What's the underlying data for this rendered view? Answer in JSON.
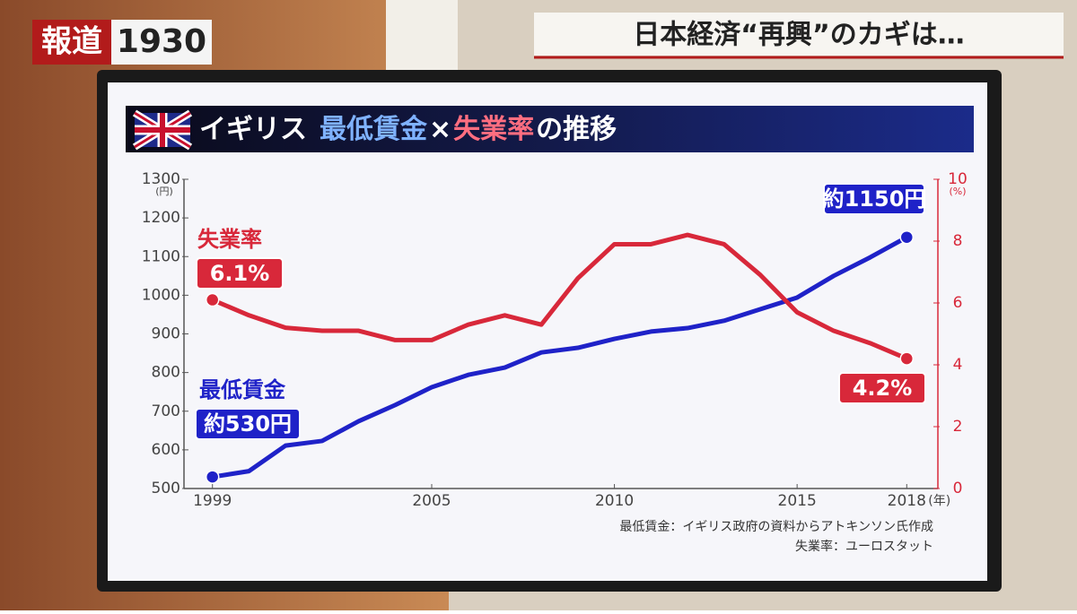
{
  "broadcast": {
    "logo": "報道",
    "number": "1930"
  },
  "headline": "日本経済“再興”のカギは…",
  "chart_data": {
    "type": "line",
    "title": [
      "イギリス",
      "最低賃金",
      "×",
      "失業率",
      "の推移"
    ],
    "x": [
      1999,
      2000,
      2001,
      2002,
      2003,
      2004,
      2005,
      2006,
      2007,
      2008,
      2009,
      2010,
      2011,
      2012,
      2013,
      2014,
      2015,
      2016,
      2017,
      2018
    ],
    "xlim": [
      1998,
      2019
    ],
    "xticks": [
      1999,
      2005,
      2010,
      2015,
      2018
    ],
    "xlabel": "(年)",
    "ylim": [
      500,
      1300
    ],
    "yticks": [
      500,
      600,
      700,
      800,
      900,
      1000,
      1100,
      1200,
      1300
    ],
    "ylabel": "(円)",
    "y2lim": [
      0,
      10
    ],
    "y2ticks": [
      0,
      2,
      4,
      6,
      8,
      10
    ],
    "y2label": "(%)",
    "series": [
      {
        "name": "最低賃金",
        "color": "#1f22c8",
        "values": [
          530,
          545,
          611,
          623,
          674,
          716,
          762,
          794,
          813,
          852,
          864,
          887,
          906,
          915,
          934,
          964,
          994,
          1050,
          1098,
          1150
        ],
        "value_labels": [
          "約530円",
          null,
          null,
          null,
          null,
          null,
          null,
          null,
          null,
          null,
          null,
          null,
          null,
          null,
          null,
          null,
          null,
          null,
          null,
          "約1150円"
        ]
      },
      {
        "name": "失業率",
        "color": "#d8283a",
        "axis": "y2",
        "values": [
          6.1,
          5.6,
          5.2,
          5.1,
          5.1,
          4.8,
          4.8,
          5.3,
          5.6,
          5.3,
          6.8,
          7.9,
          7.9,
          8.2,
          7.9,
          6.9,
          5.7,
          5.1,
          4.7,
          4.2
        ],
        "value_labels": [
          "6.1%",
          null,
          null,
          null,
          null,
          null,
          null,
          null,
          null,
          null,
          null,
          null,
          null,
          null,
          null,
          null,
          null,
          null,
          null,
          "4.2%"
        ]
      }
    ],
    "sources": [
      "最低賃金：イギリス政府の資料からアトキンソン氏作成",
      "失業率：ユーロスタット"
    ]
  }
}
